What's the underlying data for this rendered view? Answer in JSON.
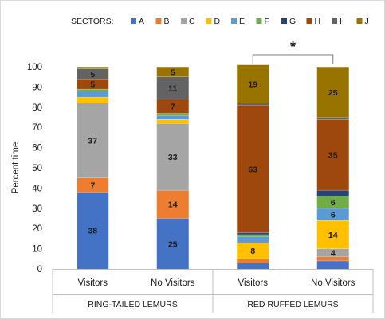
{
  "chart_data": {
    "type": "bar",
    "stacked": true,
    "title": "",
    "ylabel": "Percent time",
    "xlabel": "",
    "ylim": [
      0,
      100
    ],
    "yticks": [
      0,
      10,
      20,
      30,
      40,
      50,
      60,
      70,
      80,
      90,
      100
    ],
    "grid": false,
    "legend_title": "SECTORS:",
    "legend_position": "top",
    "categories": [
      "Visitors",
      "No Visitors",
      "Visitors",
      "No Visitors"
    ],
    "groups": [
      {
        "label": "RING-TAILED LEMURS",
        "categories": [
          0,
          1
        ]
      },
      {
        "label": "RED RUFFED LEMURS",
        "categories": [
          2,
          3
        ]
      }
    ],
    "series": [
      {
        "name": "A",
        "color": "#4472c4",
        "values": [
          38,
          25,
          3,
          4
        ],
        "labels": [
          "38",
          "25",
          "",
          ""
        ]
      },
      {
        "name": "B",
        "color": "#ed7d31",
        "values": [
          7,
          14,
          2,
          2
        ],
        "labels": [
          "7",
          "14",
          "",
          ""
        ]
      },
      {
        "name": "C",
        "color": "#a5a5a5",
        "values": [
          37,
          33,
          0,
          4
        ],
        "labels": [
          "37",
          "33",
          "",
          "4"
        ]
      },
      {
        "name": "D",
        "color": "#ffc000",
        "values": [
          3,
          2,
          8,
          14
        ],
        "labels": [
          "",
          "",
          "8",
          "14"
        ]
      },
      {
        "name": "E",
        "color": "#5b9bd5",
        "values": [
          3,
          2,
          3,
          6
        ],
        "labels": [
          "",
          "",
          "",
          "6"
        ]
      },
      {
        "name": "F",
        "color": "#70ad47",
        "values": [
          1,
          1,
          1,
          6
        ],
        "labels": [
          "",
          "",
          "",
          "6"
        ]
      },
      {
        "name": "G",
        "color": "#264478",
        "values": [
          0,
          0,
          1,
          3
        ],
        "labels": [
          "",
          "",
          "",
          ""
        ]
      },
      {
        "name": "H",
        "color": "#9e480e",
        "values": [
          5,
          7,
          63,
          35
        ],
        "labels": [
          "5",
          "7",
          "63",
          "35"
        ]
      },
      {
        "name": "I",
        "color": "#636363",
        "values": [
          5,
          11,
          1,
          1
        ],
        "labels": [
          "5",
          "11",
          "",
          ""
        ]
      },
      {
        "name": "J",
        "color": "#997300",
        "values": [
          1,
          5,
          19,
          25
        ],
        "labels": [
          "",
          "5",
          "19",
          "25"
        ]
      }
    ],
    "annotations": [
      {
        "text": "*",
        "type": "significance-bracket",
        "between_categories": [
          2,
          3
        ]
      }
    ]
  }
}
